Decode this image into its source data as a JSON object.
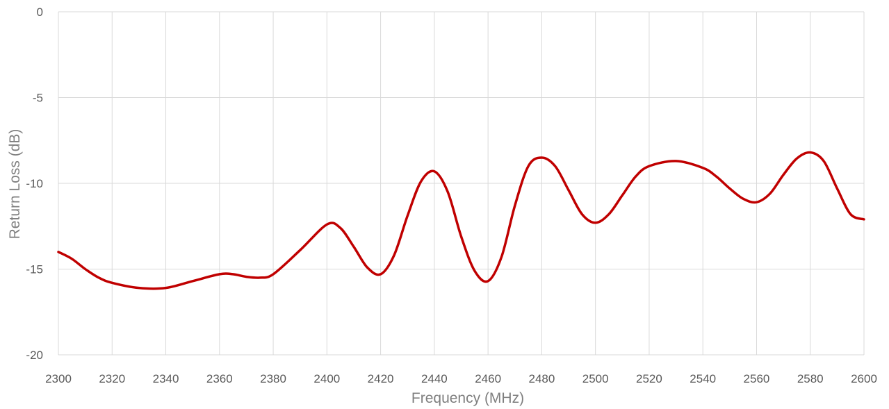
{
  "chart_data": {
    "type": "line",
    "xlabel": "Frequency (MHz)",
    "ylabel": "Return Loss (dB)",
    "xlim": [
      2300,
      2600
    ],
    "ylim": [
      -20,
      0
    ],
    "x_ticks": [
      "2300",
      "2320",
      "2340",
      "2360",
      "2380",
      "2400",
      "2420",
      "2440",
      "2460",
      "2480",
      "2500",
      "2520",
      "2540",
      "2560",
      "2580",
      "2600"
    ],
    "y_ticks": [
      "0",
      "-5",
      "-10",
      "-15",
      "-20"
    ],
    "grid": true,
    "series_color": "#c00000",
    "series": [
      {
        "x": [
          2300,
          2305,
          2310,
          2315,
          2320,
          2330,
          2340,
          2350,
          2360,
          2365,
          2370,
          2375,
          2380,
          2390,
          2400,
          2405,
          2410,
          2415,
          2420,
          2425,
          2430,
          2435,
          2440,
          2445,
          2450,
          2455,
          2460,
          2465,
          2470,
          2475,
          2480,
          2485,
          2490,
          2495,
          2500,
          2505,
          2510,
          2515,
          2520,
          2530,
          2540,
          2545,
          2550,
          2555,
          2560,
          2565,
          2570,
          2575,
          2580,
          2585,
          2590,
          2595,
          2600
        ],
        "y": [
          -14.0,
          -14.4,
          -15.0,
          -15.5,
          -15.8,
          -16.1,
          -16.1,
          -15.7,
          -15.3,
          -15.3,
          -15.45,
          -15.5,
          -15.3,
          -13.9,
          -12.4,
          -12.6,
          -13.7,
          -14.9,
          -15.3,
          -14.2,
          -11.9,
          -9.9,
          -9.3,
          -10.5,
          -13.1,
          -15.1,
          -15.7,
          -14.3,
          -11.3,
          -9.0,
          -8.5,
          -9.0,
          -10.4,
          -11.8,
          -12.3,
          -11.8,
          -10.7,
          -9.6,
          -9.0,
          -8.7,
          -9.1,
          -9.6,
          -10.3,
          -10.9,
          -11.1,
          -10.6,
          -9.5,
          -8.55,
          -8.2,
          -8.7,
          -10.3,
          -11.8,
          -12.1
        ]
      }
    ]
  }
}
